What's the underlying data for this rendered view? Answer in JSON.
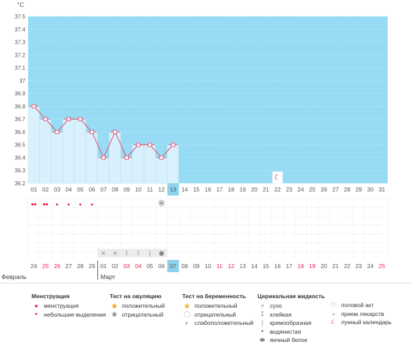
{
  "chart_data": {
    "type": "line",
    "unit": "°C",
    "y_ticks": [
      "37.5",
      "37.4",
      "37.3",
      "37.2",
      "37.1",
      "37",
      "36.9",
      "36.8",
      "36.7",
      "36.6",
      "36.5",
      "36.4",
      "36.3",
      "36.2"
    ],
    "ylim": [
      36.2,
      37.5
    ],
    "days": [
      "01",
      "02",
      "03",
      "04",
      "05",
      "06",
      "07",
      "08",
      "09",
      "10",
      "11",
      "12",
      "13",
      "14",
      "15",
      "16",
      "17",
      "18",
      "19",
      "20",
      "21",
      "22",
      "23",
      "24",
      "25",
      "26",
      "27",
      "28",
      "29",
      "30",
      "31"
    ],
    "today_index": 12,
    "temperatures": [
      36.8,
      36.7,
      36.6,
      36.7,
      36.7,
      36.6,
      36.4,
      36.6,
      36.4,
      36.5,
      36.5,
      36.4,
      36.5
    ],
    "moon_day_index": 21,
    "marker_row1": [
      {
        "day": 0,
        "type": "menstruation"
      },
      {
        "day": 1,
        "type": "menstruation"
      },
      {
        "day": 2,
        "type": "light"
      },
      {
        "day": 3,
        "type": "light"
      },
      {
        "day": 4,
        "type": "light"
      },
      {
        "day": 5,
        "type": "light"
      }
    ],
    "ovulation_neg_day": 11,
    "cervical": [
      {
        "day": 6,
        "type": "dry"
      },
      {
        "day": 7,
        "type": "dry"
      },
      {
        "day": 8,
        "type": "sticky"
      },
      {
        "day": 9,
        "type": "sticky"
      },
      {
        "day": 10,
        "type": "creamy"
      },
      {
        "day": 11,
        "type": "egg"
      }
    ],
    "dates": [
      "24",
      "25",
      "26",
      "27",
      "28",
      "29",
      "01",
      "02",
      "03",
      "04",
      "05",
      "06",
      "07",
      "08",
      "09",
      "10",
      "11",
      "12",
      "13",
      "14",
      "15",
      "16",
      "17",
      "18",
      "19",
      "20",
      "21",
      "22",
      "23",
      "24",
      "25"
    ],
    "dates_red": [
      1,
      2,
      8,
      9,
      16,
      17,
      23,
      24,
      30
    ],
    "month_left": "Февраль",
    "month_right": "Март"
  },
  "legend": {
    "menstruation": {
      "title": "Менструация",
      "items": [
        "менструация",
        "небольшие выделения"
      ]
    },
    "ovulation": {
      "title": "Тест на овуляцию",
      "items": [
        "положительный",
        "отрицательный"
      ]
    },
    "pregnancy": {
      "title": "Тест на беременность",
      "items": [
        "положительный",
        "отрицательный",
        "слабоположительный"
      ]
    },
    "cervical": {
      "title": "Церикальная жидкость",
      "items": [
        "сухо",
        "клейкая",
        "кремообразная",
        "водянистая",
        "яичный белок"
      ]
    },
    "other": {
      "items": [
        "половой акт",
        "прием лекарств",
        "лунный календарь"
      ]
    }
  },
  "colors": {
    "chart_bg": "#97dcf4",
    "bar": "#d8f1fc",
    "line": "#e05a7d",
    "today": "#8fd2ee",
    "accent_red": "#e8244f"
  }
}
